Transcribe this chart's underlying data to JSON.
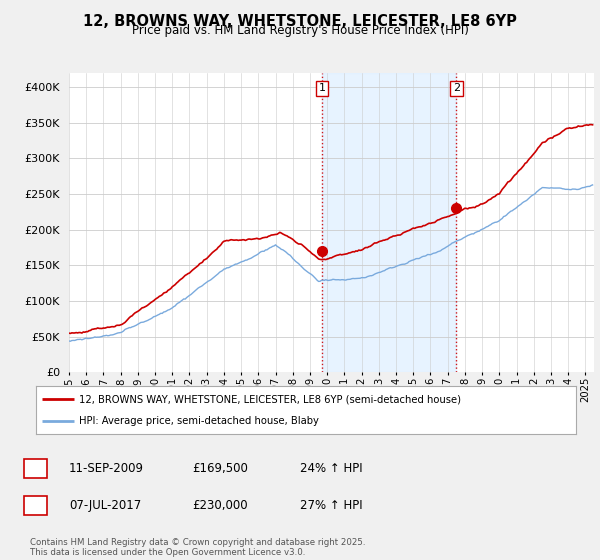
{
  "title": "12, BROWNS WAY, WHETSTONE, LEICESTER, LE8 6YP",
  "subtitle": "Price paid vs. HM Land Registry's House Price Index (HPI)",
  "legend_line1": "12, BROWNS WAY, WHETSTONE, LEICESTER, LE8 6YP (semi-detached house)",
  "legend_line2": "HPI: Average price, semi-detached house, Blaby",
  "annotation1_date": "11-SEP-2009",
  "annotation1_price": "£169,500",
  "annotation1_hpi": "24% ↑ HPI",
  "annotation2_date": "07-JUL-2017",
  "annotation2_price": "£230,000",
  "annotation2_hpi": "27% ↑ HPI",
  "footnote": "Contains HM Land Registry data © Crown copyright and database right 2025.\nThis data is licensed under the Open Government Licence v3.0.",
  "sale1_year": 2009.69,
  "sale1_value": 169500,
  "sale2_year": 2017.5,
  "sale2_value": 230000,
  "red_color": "#cc0000",
  "blue_color": "#7aaadd",
  "vline_color": "#cc0000",
  "vline_fill_color": "#ddeeff",
  "ylim_min": 0,
  "ylim_max": 420000,
  "xmin": 1995,
  "xmax": 2025.5,
  "background_color": "#f0f0f0",
  "plot_bg_color": "#ffffff",
  "grid_color": "#cccccc"
}
